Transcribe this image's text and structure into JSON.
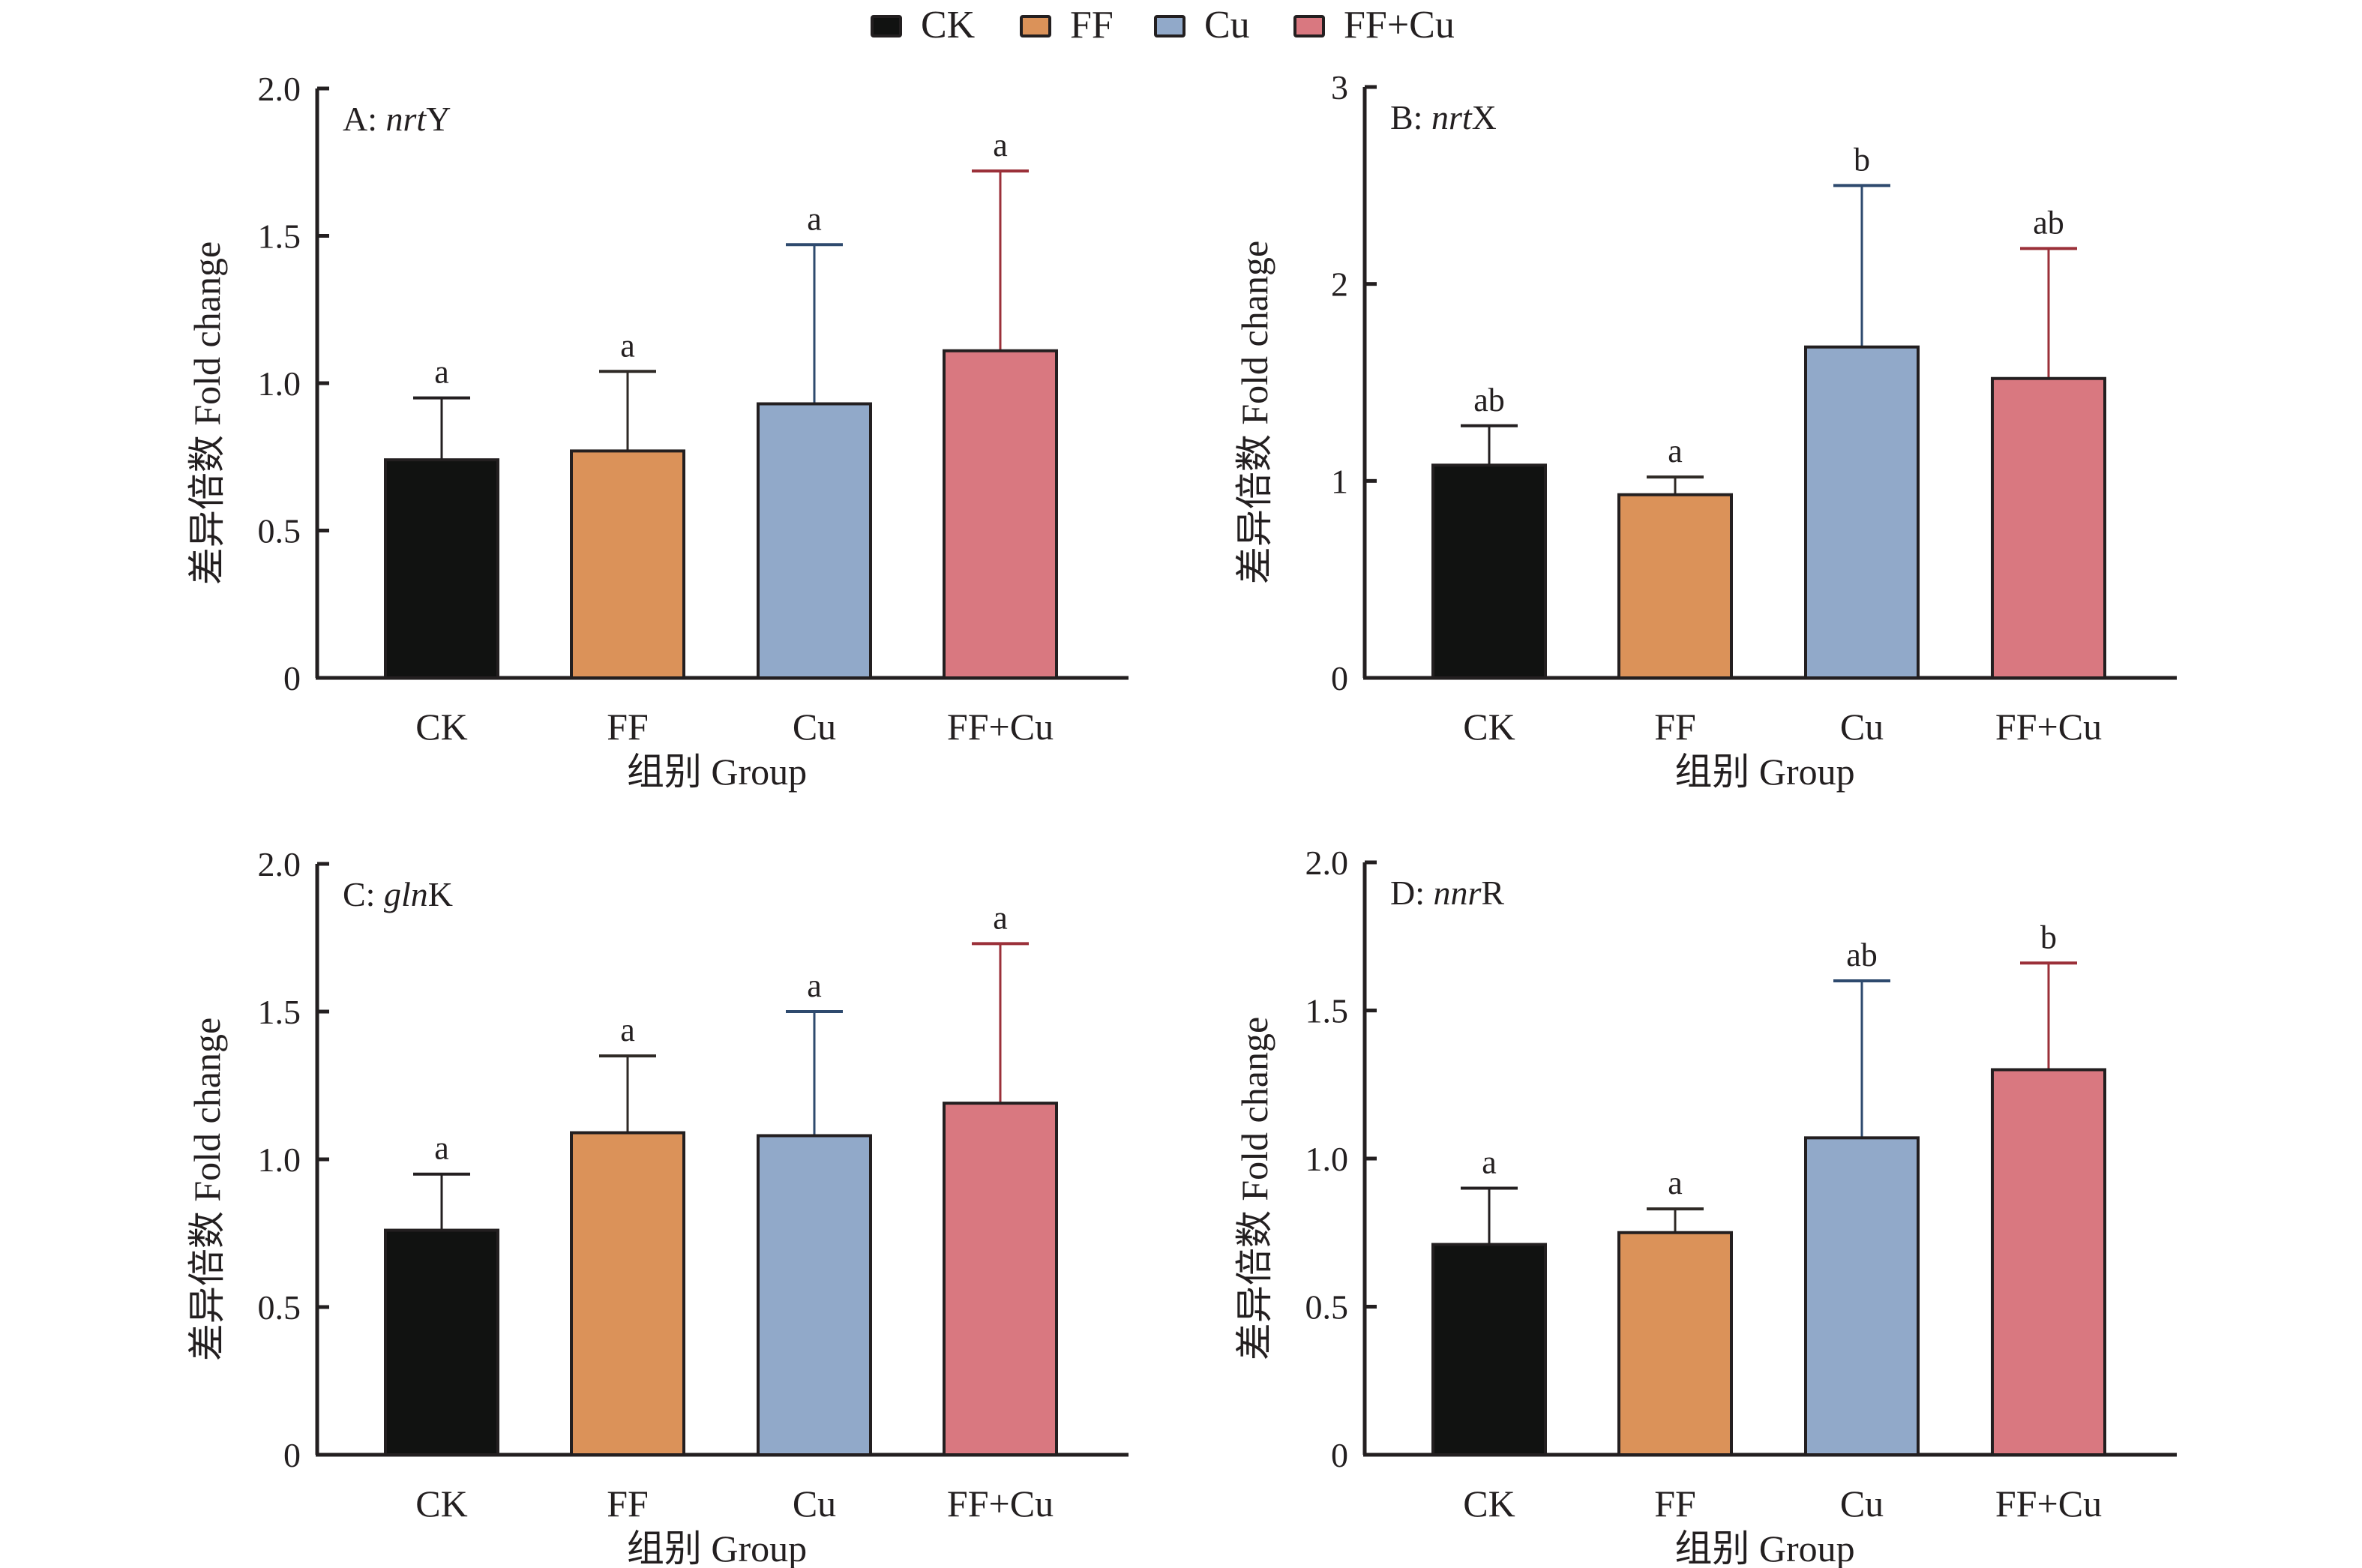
{
  "legend": {
    "items": [
      {
        "label": "CK",
        "color": "#111211"
      },
      {
        "label": "FF",
        "color": "#db9259"
      },
      {
        "label": "Cu",
        "color": "#91a9c9"
      },
      {
        "label": "FF+Cu",
        "color": "#d97880"
      }
    ]
  },
  "error_bar_colors": [
    "#231f20",
    "#2f2a26",
    "#2e4a6e",
    "#9b3039"
  ],
  "chart_data": [
    {
      "type": "bar",
      "panel_id": "A",
      "title_prefix": "A: ",
      "title_italic": "nrt",
      "title_suffix": "Y",
      "categories": [
        "CK",
        "FF",
        "Cu",
        "FF+Cu"
      ],
      "values": [
        0.74,
        0.77,
        0.93,
        1.11
      ],
      "error_upper": [
        0.95,
        1.04,
        1.47,
        1.72
      ],
      "significance": [
        "a",
        "a",
        "a",
        "a"
      ],
      "xlabel": "组别 Group",
      "ylabel": "差异倍数 Fold change",
      "ylim": [
        0,
        2.0
      ],
      "yticks": [
        0,
        0.5,
        1.0,
        1.5,
        2.0
      ],
      "ytick_labels": [
        "0",
        "0.5",
        "1.0",
        "1.5",
        "2.0"
      ],
      "grid": false
    },
    {
      "type": "bar",
      "panel_id": "B",
      "title_prefix": "B: ",
      "title_italic": "nrt",
      "title_suffix": "X",
      "categories": [
        "CK",
        "FF",
        "Cu",
        "FF+Cu"
      ],
      "values": [
        1.08,
        0.93,
        1.68,
        1.52
      ],
      "error_upper": [
        1.28,
        1.02,
        2.5,
        2.18
      ],
      "significance": [
        "ab",
        "a",
        "b",
        "ab"
      ],
      "xlabel": "组别 Group",
      "ylabel": "差异倍数 Fold change",
      "ylim": [
        0,
        3
      ],
      "yticks": [
        0,
        1,
        2,
        3
      ],
      "ytick_labels": [
        "0",
        "1",
        "2",
        "3"
      ],
      "grid": false
    },
    {
      "type": "bar",
      "panel_id": "C",
      "title_prefix": "C: ",
      "title_italic": "gln",
      "title_suffix": "K",
      "categories": [
        "CK",
        "FF",
        "Cu",
        "FF+Cu"
      ],
      "values": [
        0.76,
        1.09,
        1.08,
        1.19
      ],
      "error_upper": [
        0.95,
        1.35,
        1.5,
        1.73
      ],
      "significance": [
        "a",
        "a",
        "a",
        "a"
      ],
      "xlabel": "组别 Group",
      "ylabel": "差异倍数 Fold change",
      "ylim": [
        0,
        2.0
      ],
      "yticks": [
        0,
        0.5,
        1.0,
        1.5,
        2.0
      ],
      "ytick_labels": [
        "0",
        "0.5",
        "1.0",
        "1.5",
        "2.0"
      ],
      "grid": false
    },
    {
      "type": "bar",
      "panel_id": "D",
      "title_prefix": "D: ",
      "title_italic": "nnr",
      "title_suffix": "R",
      "categories": [
        "CK",
        "FF",
        "Cu",
        "FF+Cu"
      ],
      "values": [
        0.71,
        0.75,
        1.07,
        1.3
      ],
      "error_upper": [
        0.9,
        0.83,
        1.6,
        1.66
      ],
      "significance": [
        "a",
        "a",
        "ab",
        "b"
      ],
      "xlabel": "组别 Group",
      "ylabel": "差异倍数 Fold change",
      "ylim": [
        0,
        2.0
      ],
      "yticks": [
        0,
        0.5,
        1.0,
        1.5,
        2.0
      ],
      "ytick_labels": [
        "0",
        "0.5",
        "1.0",
        "1.5",
        "2.0"
      ],
      "grid": false
    }
  ]
}
